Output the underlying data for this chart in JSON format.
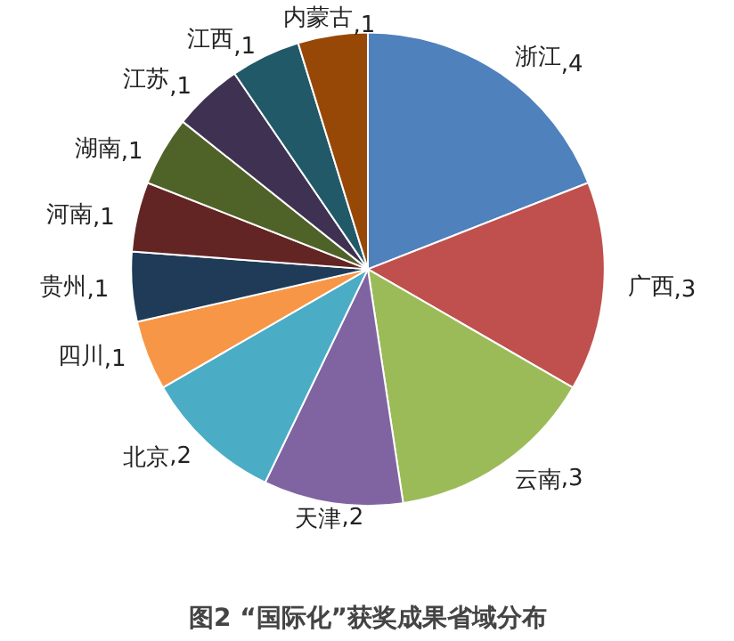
{
  "chart_data": {
    "type": "pie",
    "title": "图2 “国际化”获奖成果省域分布",
    "categories": [
      "浙江",
      "广西",
      "云南",
      "天津",
      "北京",
      "四川",
      "贵州",
      "河南",
      "湖南",
      "江苏",
      "江西",
      "内蒙古"
    ],
    "values": [
      4,
      3,
      3,
      2,
      2,
      1,
      1,
      1,
      1,
      1,
      1,
      1
    ],
    "colors": [
      "#4f81bd",
      "#c0504d",
      "#9bbb59",
      "#8064a2",
      "#4bacc6",
      "#f79646",
      "#1f3b57",
      "#632523",
      "#4f6228",
      "#3f3151",
      "#215968",
      "#974806"
    ],
    "value_labels": [
      ",4",
      ",3",
      ",3",
      ",2",
      ",2",
      ",1",
      ",1",
      ",1",
      ",1",
      ",1",
      ",1",
      ",1"
    ],
    "legend": false
  }
}
